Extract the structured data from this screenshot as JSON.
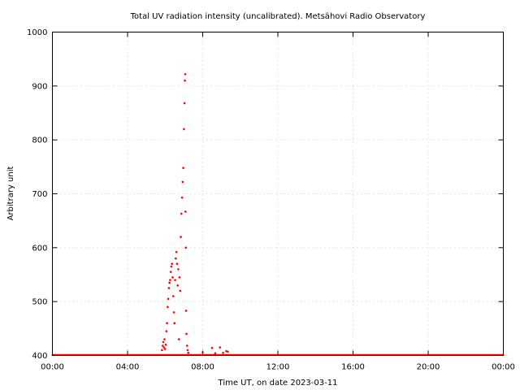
{
  "chart_data": {
    "type": "scatter",
    "title": "Total UV radiation intensity (uncalibrated). Metsähovi Radio Observatory",
    "xlabel": "Time UT, on date 2023-03-11",
    "ylabel": "Arbitrary unit",
    "xlim": [
      "00:00",
      "24:00"
    ],
    "ylim": [
      400,
      1000
    ],
    "x_ticks": [
      "00:00",
      "04:00",
      "08:00",
      "12:00",
      "16:00",
      "20:00",
      "00:00"
    ],
    "y_ticks": [
      400,
      500,
      600,
      700,
      800,
      900,
      1000
    ],
    "grid": true,
    "marker_color": "#ff0000",
    "series": [
      {
        "baseline": {
          "x_range": [
            "00:00",
            "24:00"
          ],
          "y": 401
        },
        "points": [
          {
            "x": "05:50",
            "y": 410
          },
          {
            "x": "05:52",
            "y": 418
          },
          {
            "x": "05:54",
            "y": 425
          },
          {
            "x": "05:56",
            "y": 415
          },
          {
            "x": "05:58",
            "y": 430
          },
          {
            "x": "06:00",
            "y": 412
          },
          {
            "x": "06:02",
            "y": 420
          },
          {
            "x": "06:04",
            "y": 445
          },
          {
            "x": "06:06",
            "y": 460
          },
          {
            "x": "06:08",
            "y": 490
          },
          {
            "x": "06:10",
            "y": 505
          },
          {
            "x": "06:12",
            "y": 525
          },
          {
            "x": "06:14",
            "y": 535
          },
          {
            "x": "06:16",
            "y": 540
          },
          {
            "x": "06:18",
            "y": 555
          },
          {
            "x": "06:20",
            "y": 565
          },
          {
            "x": "06:22",
            "y": 570
          },
          {
            "x": "06:24",
            "y": 545
          },
          {
            "x": "06:26",
            "y": 510
          },
          {
            "x": "06:28",
            "y": 480
          },
          {
            "x": "06:30",
            "y": 460
          },
          {
            "x": "06:32",
            "y": 540
          },
          {
            "x": "06:34",
            "y": 580
          },
          {
            "x": "06:36",
            "y": 592
          },
          {
            "x": "06:38",
            "y": 570
          },
          {
            "x": "06:40",
            "y": 530
          },
          {
            "x": "06:42",
            "y": 560
          },
          {
            "x": "06:44",
            "y": 430
          },
          {
            "x": "06:46",
            "y": 545
          },
          {
            "x": "06:48",
            "y": 520
          },
          {
            "x": "06:50",
            "y": 620
          },
          {
            "x": "06:52",
            "y": 663
          },
          {
            "x": "06:54",
            "y": 693
          },
          {
            "x": "06:56",
            "y": 722
          },
          {
            "x": "06:58",
            "y": 748
          },
          {
            "x": "07:00",
            "y": 820
          },
          {
            "x": "07:02",
            "y": 868
          },
          {
            "x": "07:03",
            "y": 910
          },
          {
            "x": "07:04",
            "y": 922
          },
          {
            "x": "07:05",
            "y": 667
          },
          {
            "x": "07:06",
            "y": 600
          },
          {
            "x": "07:07",
            "y": 483
          },
          {
            "x": "07:08",
            "y": 440
          },
          {
            "x": "07:10",
            "y": 418
          },
          {
            "x": "07:12",
            "y": 410
          },
          {
            "x": "07:14",
            "y": 405
          },
          {
            "x": "08:00",
            "y": 406
          },
          {
            "x": "08:30",
            "y": 414
          },
          {
            "x": "08:40",
            "y": 404
          },
          {
            "x": "08:55",
            "y": 415
          },
          {
            "x": "09:05",
            "y": 405
          },
          {
            "x": "09:15",
            "y": 408
          },
          {
            "x": "09:20",
            "y": 407
          }
        ]
      }
    ]
  }
}
